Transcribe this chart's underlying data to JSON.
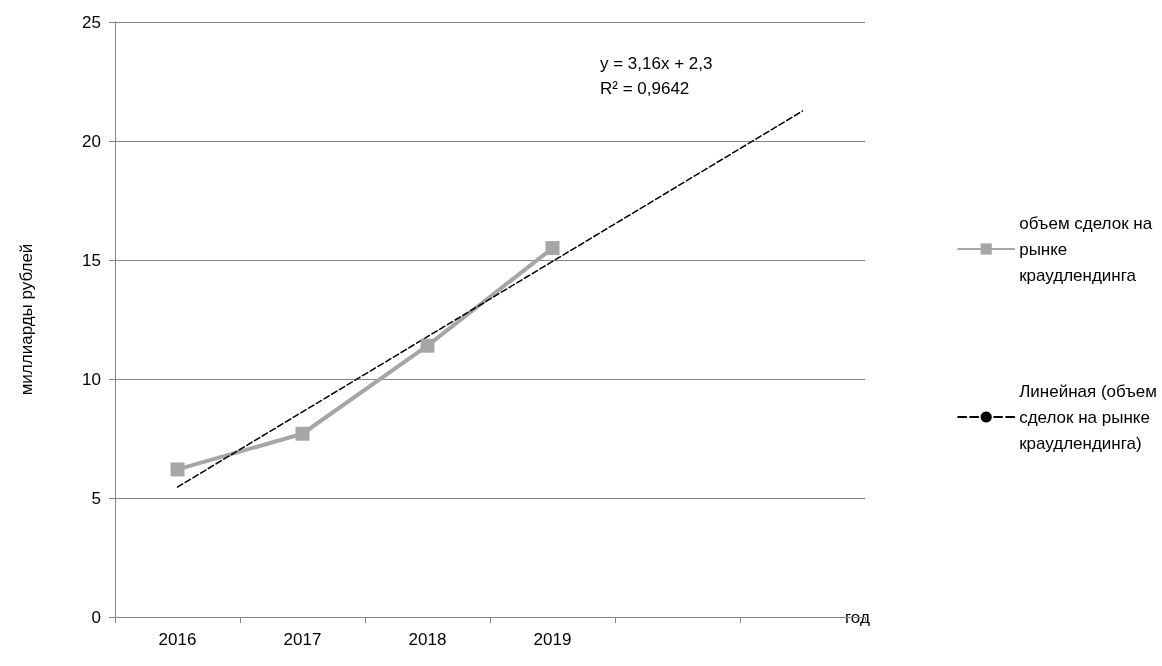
{
  "chart_data": {
    "type": "line",
    "categories": [
      "2016",
      "2017",
      "2018",
      "2019",
      null,
      null
    ],
    "series": [
      {
        "name": "объем сделок на рынке краудлендинга",
        "color": "#a6a6a6",
        "values": [
          6.2,
          7.7,
          11.4,
          15.5,
          null,
          null
        ],
        "marker": "square",
        "line_style": "solid"
      },
      {
        "name": "Линейная (объем сделок на рынке краудлендинга)",
        "color": "#000000",
        "values": [
          5.46,
          8.62,
          11.78,
          14.94,
          18.1,
          21.26
        ],
        "marker": "none",
        "line_style": "dashed"
      }
    ],
    "ylim": [
      0,
      25
    ],
    "yticks": [
      0,
      5,
      10,
      15,
      20,
      25
    ],
    "grid": "y",
    "legend": "right",
    "xlabel": "год",
    "ylabel": "миллиарды рублей",
    "annotations": [
      "y = 3,16x + 2,3",
      "R² = 0,9642"
    ]
  }
}
